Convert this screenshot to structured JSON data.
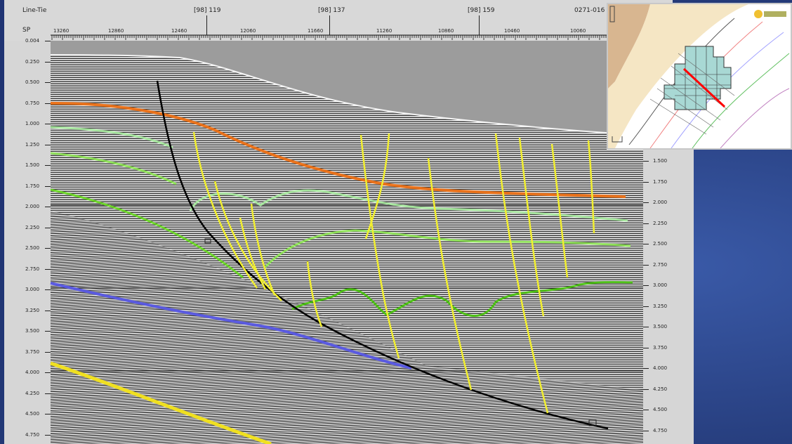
{
  "header": {
    "line_label": "Line-Tie",
    "sp_label": "SP",
    "ties": [
      "[98] 119",
      "[98] 137",
      "[98] 159",
      "0271-016"
    ],
    "sp_values": [
      "13260",
      "12860",
      "12460",
      "12060",
      "11660",
      "11260",
      "10860",
      "10460",
      "10060"
    ]
  },
  "left_axis": [
    "0.004",
    "0.250",
    "0.500",
    "0.750",
    "1.000",
    "1.250",
    "1.500",
    "1.750",
    "2.000",
    "2.250",
    "2.500",
    "2.750",
    "3.000",
    "3.250",
    "3.500",
    "3.750",
    "4.000",
    "4.250",
    "4.500",
    "4.750"
  ],
  "right_axis": [
    "1.500",
    "1.750",
    "2.000",
    "2.250",
    "2.500",
    "2.750",
    "3.000",
    "3.250",
    "3.500",
    "3.750",
    "4.000",
    "4.250",
    "4.500",
    "4.750"
  ],
  "colors": {
    "orange_horizon": "#e8721c",
    "pale_green_horizon": "#a8e6a0",
    "light_green_horizon": "#8fe05a",
    "green_horizon": "#6cd42a",
    "deep_green_horizon": "#4dbf16",
    "blue_horizon": "#5a5ae0",
    "yellow_horizon": "#f0e020",
    "fault": "#f2ef30",
    "detachment": "#000000",
    "profile_line": "#ff0000"
  },
  "inset": {
    "description_icon": "map-legend-logo-icon"
  }
}
